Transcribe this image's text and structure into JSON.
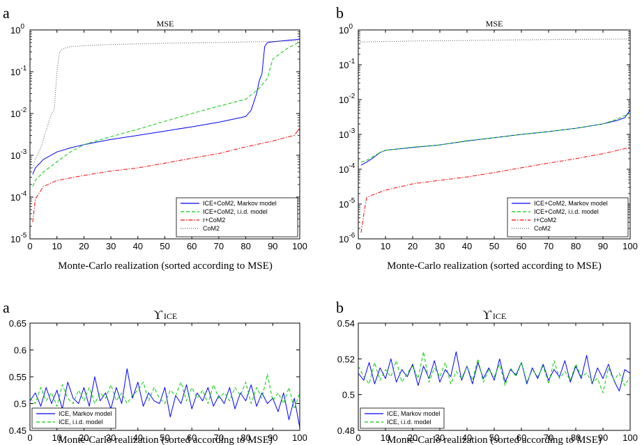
{
  "chart_data": [
    {
      "panel": "a",
      "type": "line",
      "title": "MSE",
      "xlabel": "Monte-Carlo realization (sorted according to MSE)",
      "ylabel": "",
      "xlim": [
        0,
        100
      ],
      "ylim": [
        1e-05,
        1
      ],
      "yscale": "log",
      "xticks": [
        0,
        10,
        20,
        30,
        40,
        50,
        60,
        70,
        80,
        90,
        100
      ],
      "yticks": [
        {
          "base": "10",
          "exp": "-5"
        },
        {
          "base": "10",
          "exp": "-4"
        },
        {
          "base": "10",
          "exp": "-3"
        },
        {
          "base": "10",
          "exp": "-2"
        },
        {
          "base": "10",
          "exp": "-1"
        },
        {
          "base": "10",
          "exp": "0"
        }
      ],
      "legend_position": "bottom-right",
      "series": [
        {
          "name": "ICE+CoM2, Markov model",
          "color": "#0000ff",
          "dash": "solid",
          "x": [
            1,
            2,
            5,
            10,
            15,
            20,
            30,
            40,
            50,
            60,
            70,
            80,
            82,
            84,
            85,
            86,
            87,
            88,
            90,
            95,
            100
          ],
          "y": [
            0.00035,
            0.0005,
            0.0008,
            0.0012,
            0.0015,
            0.0018,
            0.0024,
            0.003,
            0.0038,
            0.0048,
            0.0062,
            0.0085,
            0.012,
            0.03,
            0.06,
            0.09,
            0.4,
            0.5,
            0.52,
            0.56,
            0.6
          ]
        },
        {
          "name": "ICE+CoM2, i.i.d. model",
          "color": "#00cc00",
          "dash": "dashed",
          "x": [
            1,
            2,
            5,
            10,
            15,
            20,
            30,
            40,
            50,
            60,
            70,
            80,
            85,
            88,
            90,
            95,
            100
          ],
          "y": [
            0.00018,
            0.00025,
            0.0004,
            0.0007,
            0.0012,
            0.0018,
            0.0028,
            0.0042,
            0.0065,
            0.01,
            0.015,
            0.022,
            0.04,
            0.07,
            0.2,
            0.35,
            0.52
          ]
        },
        {
          "name": "r+CoM2",
          "color": "#ff0000",
          "dash": "dashdot",
          "x": [
            1,
            2,
            5,
            10,
            20,
            30,
            40,
            50,
            60,
            70,
            80,
            90,
            95,
            98,
            100
          ],
          "y": [
            2.5e-05,
            9e-05,
            0.00018,
            0.00025,
            0.00033,
            0.00042,
            0.0005,
            0.00065,
            0.00085,
            0.0011,
            0.0016,
            0.0022,
            0.0027,
            0.003,
            0.0045
          ]
        },
        {
          "name": "CoM2",
          "color": "#555555",
          "dash": "dotted",
          "x": [
            1,
            2,
            4,
            6,
            8,
            9,
            10,
            11,
            12,
            15,
            20,
            30,
            50,
            70,
            100
          ],
          "y": [
            0.0005,
            0.0008,
            0.0015,
            0.004,
            0.01,
            0.012,
            0.1,
            0.3,
            0.35,
            0.4,
            0.42,
            0.45,
            0.48,
            0.5,
            0.55
          ]
        }
      ]
    },
    {
      "panel": "b",
      "type": "line",
      "title": "MSE",
      "xlabel": "Monte-Carlo realization (sorted according to MSE)",
      "ylabel": "",
      "xlim": [
        0,
        100
      ],
      "ylim": [
        1e-06,
        1
      ],
      "yscale": "log",
      "xticks": [
        0,
        10,
        20,
        30,
        40,
        50,
        60,
        70,
        80,
        90,
        100
      ],
      "yticks": [
        {
          "base": "10",
          "exp": "-6"
        },
        {
          "base": "10",
          "exp": "-5"
        },
        {
          "base": "10",
          "exp": "-4"
        },
        {
          "base": "10",
          "exp": "-3"
        },
        {
          "base": "10",
          "exp": "-2"
        },
        {
          "base": "10",
          "exp": "-1"
        },
        {
          "base": "10",
          "exp": "0"
        }
      ],
      "legend_position": "bottom-right",
      "series": [
        {
          "name": "ICE+CoM2, Markov model",
          "color": "#0000ff",
          "dash": "solid",
          "x": [
            1,
            3,
            5,
            8,
            10,
            20,
            30,
            40,
            50,
            60,
            70,
            80,
            90,
            95,
            98,
            100
          ],
          "y": [
            0.00013,
            0.00016,
            0.0002,
            0.0003,
            0.00035,
            0.00042,
            0.0005,
            0.00065,
            0.0008,
            0.001,
            0.0012,
            0.0015,
            0.002,
            0.0025,
            0.003,
            0.005
          ]
        },
        {
          "name": "ICE+CoM2, i.i.d. model",
          "color": "#00cc00",
          "dash": "dashed",
          "x": [
            1,
            3,
            5,
            8,
            10,
            20,
            30,
            40,
            50,
            60,
            70,
            80,
            90,
            95,
            98,
            100
          ],
          "y": [
            0.00016,
            0.00018,
            0.00022,
            0.0003,
            0.00035,
            0.00043,
            0.0005,
            0.00066,
            0.0008,
            0.001,
            0.0012,
            0.0015,
            0.002,
            0.0027,
            0.0035,
            0.004
          ]
        },
        {
          "name": "r+CoM2",
          "color": "#ff0000",
          "dash": "dashdot",
          "x": [
            1,
            2,
            3,
            5,
            10,
            20,
            30,
            40,
            50,
            60,
            70,
            80,
            90,
            100
          ],
          "y": [
            1.5e-06,
            5e-06,
            1.5e-05,
            1.8e-05,
            2.5e-05,
            3.8e-05,
            4.8e-05,
            6e-05,
            8e-05,
            0.00011,
            0.00015,
            0.0002,
            0.00028,
            0.00042
          ]
        },
        {
          "name": "CoM2",
          "color": "#555555",
          "dash": "dotted",
          "x": [
            0,
            20,
            40,
            60,
            80,
            100
          ],
          "y": [
            0.45,
            0.48,
            0.5,
            0.52,
            0.54,
            0.55
          ]
        }
      ]
    },
    {
      "panel": "a",
      "type": "line",
      "title": "ϒ",
      "title_subscript": "ICE",
      "xlabel": "Monte-Carlo realization (sorted according to MSE)",
      "ylabel": "",
      "xlim": [
        0,
        100
      ],
      "ylim": [
        0.45,
        0.65
      ],
      "yscale": "linear",
      "xticks": [
        0,
        10,
        20,
        30,
        40,
        50,
        60,
        70,
        80,
        90,
        100
      ],
      "yticks": [
        "0.45",
        "0.5",
        "0.55",
        "0.6",
        "0.65"
      ],
      "legend_position": "bottom-left",
      "series": [
        {
          "name": "ICE, Markov model",
          "color": "#0000ff",
          "dash": "solid",
          "x": [
            0,
            2,
            4,
            6,
            8,
            10,
            12,
            14,
            16,
            18,
            20,
            22,
            24,
            26,
            28,
            30,
            32,
            34,
            36,
            38,
            40,
            42,
            44,
            46,
            48,
            50,
            52,
            54,
            56,
            58,
            60,
            62,
            64,
            66,
            68,
            70,
            72,
            74,
            76,
            78,
            80,
            82,
            84,
            86,
            88,
            90,
            92,
            94,
            96,
            98,
            100
          ],
          "y": [
            0.505,
            0.52,
            0.495,
            0.53,
            0.5,
            0.525,
            0.49,
            0.54,
            0.51,
            0.5,
            0.53,
            0.495,
            0.55,
            0.505,
            0.52,
            0.49,
            0.53,
            0.5,
            0.565,
            0.51,
            0.54,
            0.495,
            0.52,
            0.505,
            0.5,
            0.53,
            0.475,
            0.515,
            0.5,
            0.535,
            0.49,
            0.52,
            0.505,
            0.53,
            0.495,
            0.515,
            0.5,
            0.53,
            0.49,
            0.52,
            0.505,
            0.535,
            0.495,
            0.52,
            0.5,
            0.51,
            0.485,
            0.52,
            0.47,
            0.51,
            0.455
          ]
        },
        {
          "name": "ICE, i.i.d. model",
          "color": "#00cc00",
          "dash": "dashed",
          "x": [
            0,
            2,
            4,
            6,
            8,
            10,
            12,
            14,
            16,
            18,
            20,
            22,
            24,
            26,
            28,
            30,
            32,
            34,
            36,
            38,
            40,
            42,
            44,
            46,
            48,
            50,
            52,
            54,
            56,
            58,
            60,
            62,
            64,
            66,
            68,
            70,
            72,
            74,
            76,
            78,
            80,
            82,
            84,
            86,
            88,
            90,
            92,
            94,
            96,
            98,
            100
          ],
          "y": [
            0.51,
            0.5,
            0.53,
            0.505,
            0.52,
            0.495,
            0.535,
            0.51,
            0.5,
            0.525,
            0.505,
            0.53,
            0.5,
            0.52,
            0.51,
            0.535,
            0.505,
            0.52,
            0.5,
            0.515,
            0.525,
            0.54,
            0.505,
            0.53,
            0.51,
            0.5,
            0.525,
            0.515,
            0.54,
            0.505,
            0.53,
            0.51,
            0.525,
            0.5,
            0.535,
            0.51,
            0.52,
            0.505,
            0.53,
            0.515,
            0.54,
            0.5,
            0.53,
            0.51,
            0.555,
            0.505,
            0.52,
            0.5,
            0.53,
            0.49,
            0.52
          ]
        }
      ]
    },
    {
      "panel": "b",
      "type": "line",
      "title": "ϒ",
      "title_subscript": "ICE",
      "xlabel": "Monte-Carlo realization (sorted according to MSE)",
      "ylabel": "",
      "xlim": [
        0,
        100
      ],
      "ylim": [
        0.48,
        0.54
      ],
      "yscale": "linear",
      "xticks": [
        0,
        10,
        20,
        30,
        40,
        50,
        60,
        70,
        80,
        90,
        100
      ],
      "yticks": [
        "0.48",
        "0.5",
        "0.52",
        "0.54"
      ],
      "legend_position": "bottom-left",
      "series": [
        {
          "name": "ICE, Markov model",
          "color": "#0000ff",
          "dash": "solid",
          "x": [
            0,
            2,
            4,
            6,
            8,
            10,
            12,
            14,
            16,
            18,
            20,
            22,
            24,
            26,
            28,
            30,
            32,
            34,
            36,
            38,
            40,
            42,
            44,
            46,
            48,
            50,
            52,
            54,
            56,
            58,
            60,
            62,
            64,
            66,
            68,
            70,
            72,
            74,
            76,
            78,
            80,
            82,
            84,
            86,
            88,
            90,
            92,
            94,
            96,
            98,
            100
          ],
          "y": [
            0.512,
            0.508,
            0.518,
            0.506,
            0.515,
            0.509,
            0.52,
            0.507,
            0.514,
            0.51,
            0.517,
            0.505,
            0.516,
            0.509,
            0.519,
            0.507,
            0.514,
            0.51,
            0.524,
            0.508,
            0.516,
            0.506,
            0.518,
            0.509,
            0.515,
            0.508,
            0.52,
            0.507,
            0.514,
            0.511,
            0.518,
            0.506,
            0.515,
            0.509,
            0.517,
            0.508,
            0.514,
            0.51,
            0.519,
            0.507,
            0.516,
            0.509,
            0.522,
            0.506,
            0.515,
            0.509,
            0.517,
            0.508,
            0.502,
            0.514,
            0.512
          ]
        },
        {
          "name": "ICE, i.i.d. model",
          "color": "#00cc00",
          "dash": "dashed",
          "x": [
            0,
            2,
            4,
            6,
            8,
            10,
            12,
            14,
            16,
            18,
            20,
            22,
            24,
            26,
            28,
            30,
            32,
            34,
            36,
            38,
            40,
            42,
            44,
            46,
            48,
            50,
            52,
            54,
            56,
            58,
            60,
            62,
            64,
            66,
            68,
            70,
            72,
            74,
            76,
            78,
            80,
            82,
            84,
            86,
            88,
            90,
            92,
            94,
            96,
            98,
            100
          ],
          "y": [
            0.516,
            0.51,
            0.506,
            0.518,
            0.508,
            0.514,
            0.51,
            0.519,
            0.507,
            0.512,
            0.516,
            0.509,
            0.524,
            0.507,
            0.515,
            0.51,
            0.518,
            0.506,
            0.513,
            0.509,
            0.516,
            0.508,
            0.52,
            0.507,
            0.514,
            0.51,
            0.517,
            0.505,
            0.515,
            0.51,
            0.518,
            0.507,
            0.514,
            0.51,
            0.516,
            0.506,
            0.519,
            0.509,
            0.513,
            0.508,
            0.517,
            0.51,
            0.512,
            0.507,
            0.509,
            0.501,
            0.515,
            0.508,
            0.512,
            0.505,
            0.51
          ]
        }
      ]
    }
  ]
}
